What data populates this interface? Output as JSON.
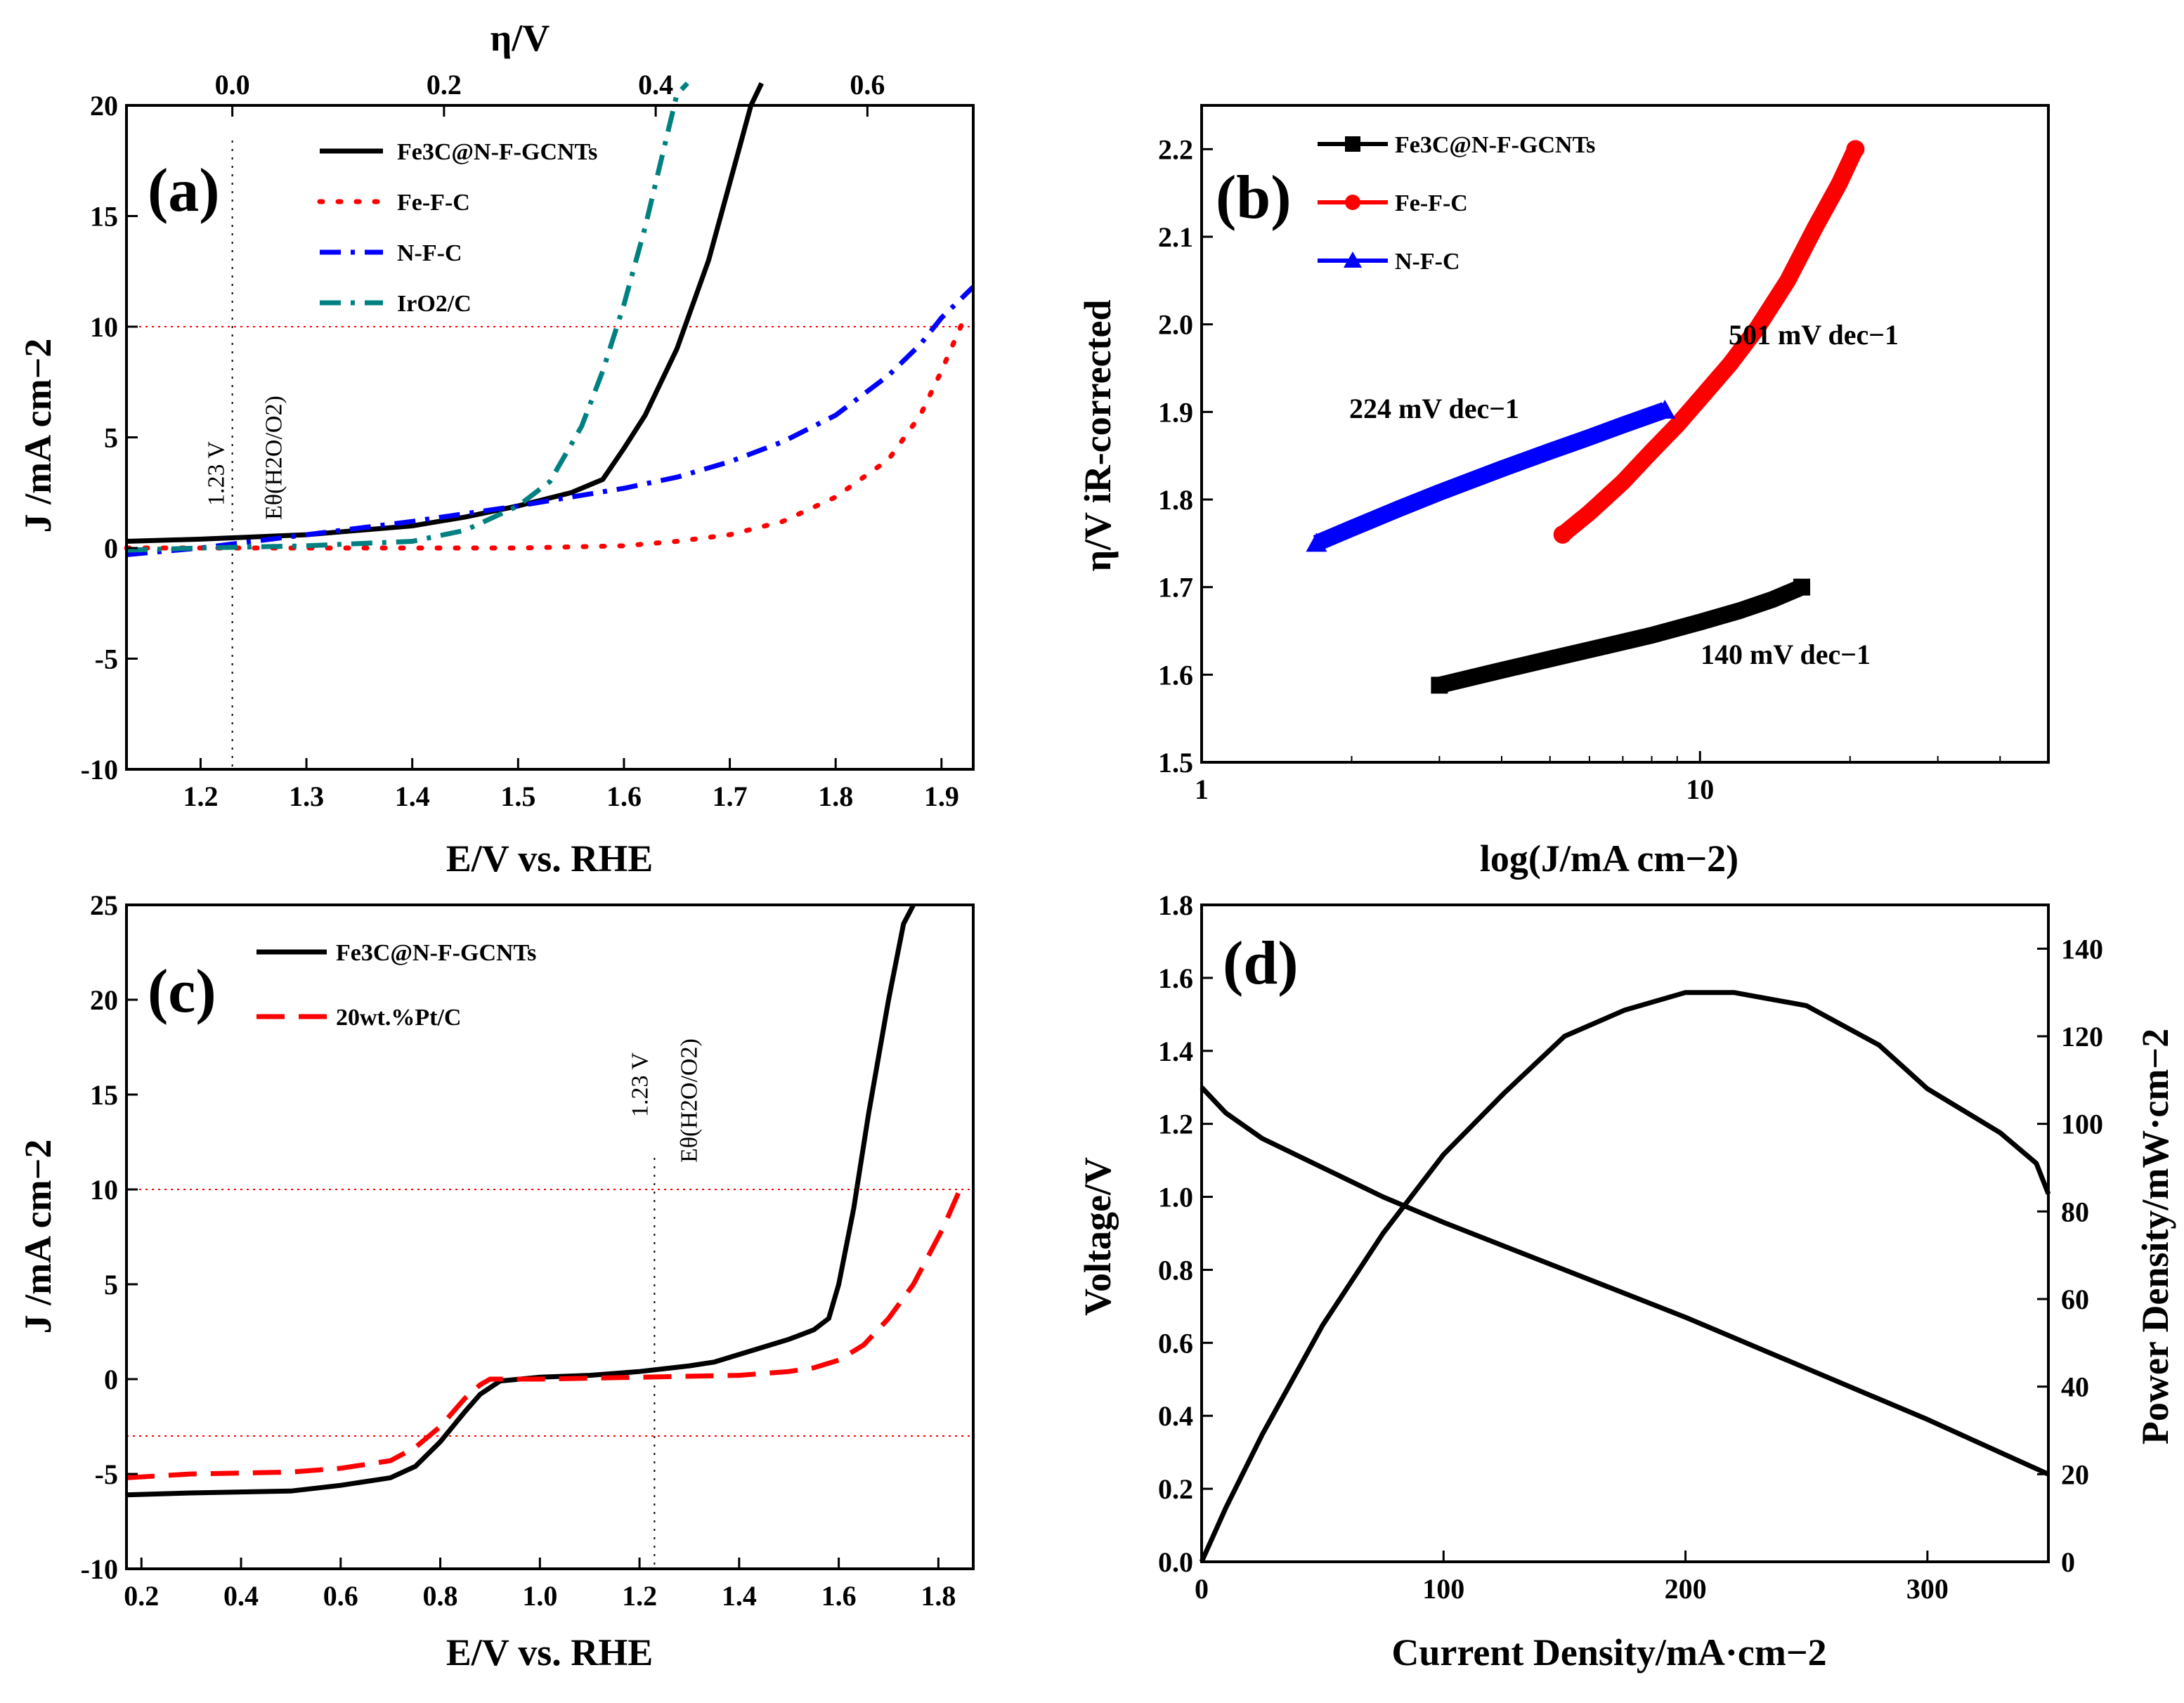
{
  "chart_data": [
    {
      "panel": "a",
      "type": "line",
      "panel_label": "(a)",
      "xlabel": "E/V vs. RHE",
      "ylabel": "J /mA cm−2",
      "top_xlabel": "η/V",
      "xlim": [
        1.13,
        1.93
      ],
      "ylim": [
        -10,
        20
      ],
      "xticks": [
        "1.2",
        "1.3",
        "1.4",
        "1.5",
        "1.6",
        "1.7",
        "1.8",
        "1.9"
      ],
      "yticks": [
        "-10",
        "-5",
        "0",
        "5",
        "10",
        "15",
        "20"
      ],
      "top_ticks": [
        "0.0",
        "0.2",
        "0.4",
        "0.6"
      ],
      "top_tick_values": [
        0.0,
        0.2,
        0.4,
        0.6
      ],
      "reference_line": {
        "E": 1.23,
        "label_v": "1.23 V",
        "label_e": "Eθ(H2O/O2)"
      },
      "hline_y": 10,
      "series": [
        {
          "name": "Fe3C@N-F-GCNTs",
          "color": "#000000",
          "dash": "solid",
          "x": [
            1.13,
            1.2,
            1.3,
            1.4,
            1.45,
            1.5,
            1.55,
            1.58,
            1.6,
            1.62,
            1.65,
            1.68,
            1.7,
            1.72,
            1.73
          ],
          "y": [
            0.3,
            0.4,
            0.6,
            1.0,
            1.4,
            1.9,
            2.5,
            3.1,
            4.5,
            6.0,
            9.0,
            13.0,
            16.5,
            20.0,
            21.0
          ]
        },
        {
          "name": "Fe-F-C",
          "color": "#ff0000",
          "dash": "dot",
          "x": [
            1.13,
            1.2,
            1.3,
            1.4,
            1.5,
            1.6,
            1.65,
            1.7,
            1.75,
            1.8,
            1.85,
            1.88,
            1.9,
            1.92
          ],
          "y": [
            0.0,
            0.0,
            0.0,
            0.0,
            0.0,
            0.1,
            0.3,
            0.6,
            1.2,
            2.3,
            4.0,
            6.0,
            8.0,
            10.2
          ]
        },
        {
          "name": "N-F-C",
          "color": "#0000ff",
          "dash": "dashdot",
          "x": [
            1.13,
            1.2,
            1.3,
            1.4,
            1.5,
            1.55,
            1.6,
            1.65,
            1.7,
            1.75,
            1.8,
            1.85,
            1.88,
            1.9,
            1.93
          ],
          "y": [
            -0.3,
            0.0,
            0.6,
            1.2,
            1.9,
            2.3,
            2.7,
            3.2,
            3.9,
            4.8,
            6.0,
            7.8,
            9.2,
            10.4,
            11.8
          ]
        },
        {
          "name": "IrO2/C",
          "color": "#008080",
          "dash": "dashdot",
          "x": [
            1.13,
            1.2,
            1.3,
            1.4,
            1.45,
            1.5,
            1.53,
            1.56,
            1.58,
            1.6,
            1.62,
            1.64,
            1.65,
            1.66
          ],
          "y": [
            -0.1,
            0.0,
            0.1,
            0.3,
            0.8,
            1.9,
            3.0,
            5.5,
            8.0,
            11.0,
            14.5,
            18.5,
            20.5,
            21.0
          ]
        }
      ]
    },
    {
      "panel": "b",
      "type": "line",
      "panel_label": "(b)",
      "xlabel": "log(J/mA cm−2)",
      "ylabel": "η/V iR-corrected",
      "xscale": "log",
      "xlim": [
        1,
        50
      ],
      "ylim": [
        1.5,
        2.25
      ],
      "xticks": [
        "1",
        "10"
      ],
      "yticks": [
        "1.5",
        "1.6",
        "1.7",
        "1.8",
        "1.9",
        "2.0",
        "2.1",
        "2.2"
      ],
      "annotations": [
        {
          "text": "501 mV dec−1",
          "series": "Fe-F-C"
        },
        {
          "text": "224 mV dec−1",
          "series": "N-F-C"
        },
        {
          "text": "140 mV dec−1",
          "series": "Fe3C@N-F-GCNTs"
        }
      ],
      "series": [
        {
          "name": "Fe3C@N-F-GCNTs",
          "color": "#000000",
          "marker": "square",
          "x": [
            3.0,
            4.0,
            5.0,
            6.5,
            8.0,
            10.0,
            12.0,
            14.0,
            16.0
          ],
          "y": [
            1.588,
            1.605,
            1.618,
            1.633,
            1.645,
            1.66,
            1.673,
            1.686,
            1.7
          ]
        },
        {
          "name": "Fe-F-C",
          "color": "#ff0000",
          "marker": "circle",
          "x": [
            5.3,
            6.0,
            7.0,
            8.0,
            9.0,
            10.0,
            11.5,
            13.0,
            15.0,
            17.0,
            19.0,
            20.5
          ],
          "y": [
            1.76,
            1.785,
            1.82,
            1.855,
            1.885,
            1.915,
            1.955,
            1.995,
            2.05,
            2.11,
            2.16,
            2.2
          ]
        },
        {
          "name": "N-F-C",
          "color": "#0000ff",
          "marker": "triangle",
          "x": [
            1.7,
            2.0,
            2.5,
            3.0,
            4.0,
            5.0,
            6.0,
            7.0,
            8.5
          ],
          "y": [
            1.75,
            1.767,
            1.79,
            1.808,
            1.835,
            1.855,
            1.871,
            1.885,
            1.902
          ]
        }
      ]
    },
    {
      "panel": "c",
      "type": "line",
      "panel_label": "(c)",
      "xlabel": "E/V vs. RHE",
      "ylabel": "J /mA cm−2",
      "xlim": [
        0.17,
        1.87
      ],
      "ylim": [
        -10,
        25
      ],
      "xticks": [
        "0.2",
        "0.4",
        "0.6",
        "0.8",
        "1.0",
        "1.2",
        "1.4",
        "1.6",
        "1.8"
      ],
      "yticks": [
        "-10",
        "-5",
        "0",
        "5",
        "10",
        "15",
        "20",
        "25"
      ],
      "reference_line": {
        "E": 1.23,
        "label_v": "1.23 V",
        "label_e": "Eθ(H2O/O2)"
      },
      "hlines_y": [
        10,
        -3
      ],
      "series": [
        {
          "name": "Fe3C@N-F-GCNTs",
          "color": "#000000",
          "dash": "solid",
          "x": [
            0.17,
            0.3,
            0.5,
            0.6,
            0.7,
            0.75,
            0.8,
            0.85,
            0.88,
            0.92,
            0.96,
            1.0,
            1.1,
            1.2,
            1.3,
            1.35,
            1.4,
            1.5,
            1.55,
            1.58,
            1.6,
            1.63,
            1.66,
            1.7,
            1.73,
            1.75
          ],
          "y": [
            -6.1,
            -6.0,
            -5.9,
            -5.6,
            -5.2,
            -4.6,
            -3.3,
            -1.7,
            -0.8,
            -0.1,
            0.0,
            0.1,
            0.2,
            0.4,
            0.7,
            0.9,
            1.3,
            2.1,
            2.6,
            3.2,
            5.0,
            9.0,
            14.0,
            20.0,
            24.0,
            25.0
          ]
        },
        {
          "name": "20wt.%Pt/C",
          "color": "#ff0000",
          "dash": "dash",
          "x": [
            0.17,
            0.3,
            0.5,
            0.6,
            0.7,
            0.75,
            0.8,
            0.85,
            0.88,
            0.9,
            0.95,
            1.0,
            1.2,
            1.4,
            1.5,
            1.55,
            1.6,
            1.65,
            1.7,
            1.75,
            1.78,
            1.81,
            1.84
          ],
          "y": [
            -5.2,
            -5.0,
            -4.9,
            -4.7,
            -4.3,
            -3.6,
            -2.5,
            -1.0,
            -0.3,
            0.0,
            0.0,
            0.0,
            0.1,
            0.2,
            0.4,
            0.6,
            1.0,
            1.8,
            3.2,
            5.0,
            6.5,
            8.0,
            9.8
          ]
        }
      ]
    },
    {
      "panel": "d",
      "type": "line",
      "panel_label": "(d)",
      "xlabel": "Current Density/mA·cm−2",
      "ylabel": "Voltage/V",
      "ylabel_right": "Power Density/mW·cm−2",
      "xlim": [
        0,
        350
      ],
      "ylim": [
        0,
        1.8
      ],
      "ylim_right": [
        0,
        150
      ],
      "xticks": [
        "0",
        "100",
        "200",
        "300"
      ],
      "yticks": [
        "0.0",
        "0.2",
        "0.4",
        "0.6",
        "0.8",
        "1.0",
        "1.2",
        "1.4",
        "1.6",
        "1.8"
      ],
      "yticks_right": [
        "0",
        "20",
        "40",
        "60",
        "80",
        "100",
        "120",
        "140"
      ],
      "series": [
        {
          "name": "Voltage",
          "axis": "left",
          "color": "#000000",
          "x": [
            0,
            10,
            25,
            50,
            75,
            100,
            150,
            200,
            250,
            300,
            330,
            350
          ],
          "y": [
            1.3,
            1.23,
            1.16,
            1.08,
            1.0,
            0.93,
            0.8,
            0.67,
            0.53,
            0.39,
            0.3,
            0.24
          ]
        },
        {
          "name": "Power Density",
          "axis": "right",
          "color": "#000000",
          "x": [
            0,
            10,
            25,
            50,
            75,
            100,
            125,
            150,
            175,
            200,
            220,
            250,
            280,
            300,
            330,
            345,
            350
          ],
          "y": [
            0,
            12.3,
            29,
            54,
            75,
            93,
            107,
            120,
            126,
            130,
            130,
            127,
            118,
            108,
            98,
            91,
            84
          ]
        }
      ]
    }
  ]
}
